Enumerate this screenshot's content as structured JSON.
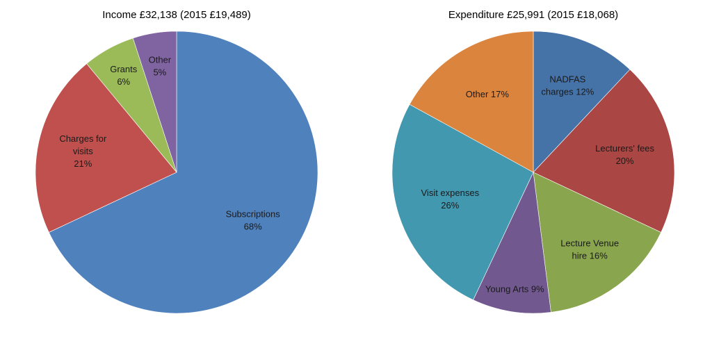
{
  "chart_data": [
    {
      "type": "pie",
      "title": "Income £32,138 (2015 £19,489)",
      "start": "top",
      "direction": "clockwise",
      "slices": [
        {
          "name": "Subscriptions",
          "value": 68,
          "label": [
            "Subscriptions",
            "68%"
          ],
          "color": "#4f81bd"
        },
        {
          "name": "Charges for visits",
          "value": 21,
          "label": [
            "Charges for",
            "visits",
            "21%"
          ],
          "color": "#c0504d"
        },
        {
          "name": "Grants",
          "value": 6,
          "label": [
            "Grants",
            "6%"
          ],
          "color": "#9bbb59"
        },
        {
          "name": "Other",
          "value": 5,
          "label": [
            "Other",
            "5%"
          ],
          "color": "#8064a2"
        }
      ]
    },
    {
      "type": "pie",
      "title": "Expenditure  £25,991 (2015 £18,068)",
      "start": "top",
      "direction": "clockwise",
      "slices": [
        {
          "name": "NADFAS charges",
          "value": 12,
          "label": [
            "NADFAS",
            "charges 12%"
          ],
          "color": "#4572a7"
        },
        {
          "name": "Lecturers' fees",
          "value": 20,
          "label": [
            "Lecturers' fees",
            "20%"
          ],
          "color": "#aa4643"
        },
        {
          "name": "Lecture Venue hire",
          "value": 16,
          "label": [
            "Lecture Venue",
            "hire 16%"
          ],
          "color": "#89a54e"
        },
        {
          "name": "Young Arts",
          "value": 9,
          "label": [
            "Young Arts 9%"
          ],
          "color": "#71588f"
        },
        {
          "name": "Visit expenses",
          "value": 26,
          "label": [
            "Visit expenses",
            "26%"
          ],
          "color": "#4198af"
        },
        {
          "name": "Other",
          "value": 17,
          "label": [
            "Other 17%"
          ],
          "color": "#db843d"
        }
      ]
    }
  ]
}
